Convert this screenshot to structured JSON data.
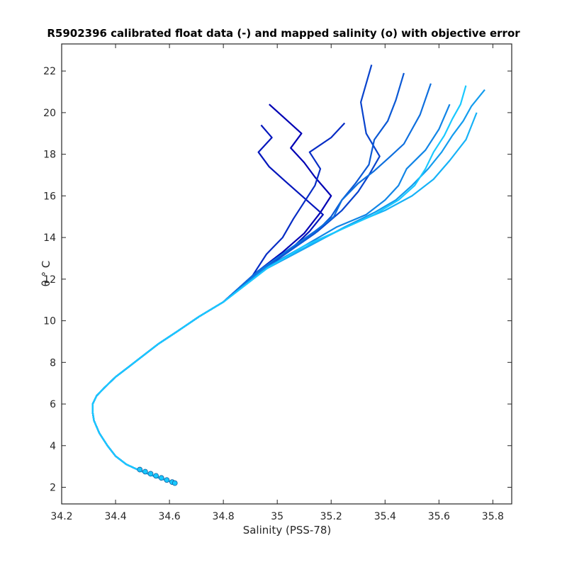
{
  "chart_data": {
    "type": "line",
    "title": "R5902396 calibrated float data (-) and mapped salinity (o) with objective error",
    "xlabel": "Salinity (PSS-78)",
    "ylabel": "θ ° C",
    "xlim": [
      34.2,
      35.87
    ],
    "ylim": [
      1.2,
      23.3
    ],
    "xticks": [
      34.2,
      34.4,
      34.6,
      34.8,
      35,
      35.2,
      35.4,
      35.6,
      35.8
    ],
    "xtick_labels": [
      "34.2",
      "34.4",
      "34.6",
      "34.8",
      "35",
      "35.2",
      "35.4",
      "35.6",
      "35.8"
    ],
    "yticks": [
      2,
      4,
      6,
      8,
      10,
      12,
      14,
      16,
      18,
      20,
      22
    ],
    "ytick_labels": [
      "2",
      "4",
      "6",
      "8",
      "10",
      "12",
      "14",
      "16",
      "18",
      "20",
      "22"
    ],
    "grid": false,
    "legend": "none",
    "color_start": "#0000b4",
    "color_end": "#19c8ff",
    "common_profile": {
      "x": [
        34.62,
        34.55,
        34.49,
        34.44,
        34.4,
        34.37,
        34.34,
        34.32,
        34.315,
        34.315,
        34.33,
        34.36,
        34.4,
        34.45,
        34.5,
        34.56,
        34.63,
        34.71,
        34.8
      ],
      "y": [
        2.2,
        2.5,
        2.8,
        3.1,
        3.5,
        4.0,
        4.6,
        5.2,
        5.6,
        6.0,
        6.4,
        6.8,
        7.3,
        7.8,
        8.3,
        8.9,
        9.5,
        10.2,
        10.9
      ]
    },
    "profiles": [
      {
        "x": [
          34.8,
          34.92,
          35.02,
          35.1,
          35.16,
          35.2,
          35.14,
          35.1,
          35.05,
          35.09,
          35.03,
          34.97
        ],
        "y": [
          10.9,
          12.3,
          13.3,
          14.2,
          15.2,
          16.0,
          16.9,
          17.6,
          18.3,
          19.0,
          19.7,
          20.4
        ]
      },
      {
        "x": [
          34.8,
          34.94,
          35.04,
          35.12,
          35.17,
          35.1,
          35.03,
          34.97,
          34.93,
          34.98,
          34.94
        ],
        "y": [
          10.9,
          12.4,
          13.3,
          14.3,
          15.1,
          15.9,
          16.7,
          17.4,
          18.1,
          18.8,
          19.4
        ]
      },
      {
        "x": [
          34.8,
          34.9,
          34.96,
          35.02,
          35.06,
          35.1,
          35.14,
          35.16,
          35.12,
          35.2,
          35.25
        ],
        "y": [
          10.9,
          12.0,
          13.2,
          14.0,
          14.9,
          15.7,
          16.5,
          17.3,
          18.1,
          18.8,
          19.5
        ]
      },
      {
        "x": [
          34.8,
          34.93,
          35.05,
          35.15,
          35.24,
          35.3,
          35.34,
          35.38,
          35.33,
          35.31,
          35.35
        ],
        "y": [
          10.9,
          12.4,
          13.4,
          14.3,
          15.3,
          16.2,
          17.0,
          17.9,
          19.0,
          20.5,
          22.3
        ]
      },
      {
        "x": [
          34.8,
          34.92,
          35.04,
          35.14,
          35.2,
          35.24,
          35.29,
          35.34,
          35.36,
          35.41,
          35.44,
          35.47
        ],
        "y": [
          10.9,
          12.3,
          13.3,
          14.2,
          15.0,
          15.8,
          16.6,
          17.5,
          18.7,
          19.6,
          20.6,
          21.9
        ]
      },
      {
        "x": [
          34.8,
          34.93,
          35.04,
          35.14,
          35.21,
          35.24,
          35.3,
          35.36,
          35.42,
          35.47,
          35.5,
          35.53,
          35.57
        ],
        "y": [
          10.9,
          12.4,
          13.4,
          14.3,
          15.0,
          15.8,
          16.6,
          17.2,
          17.9,
          18.5,
          19.2,
          19.9,
          21.4
        ]
      },
      {
        "x": [
          34.8,
          34.95,
          35.1,
          35.22,
          35.33,
          35.4,
          35.45,
          35.48,
          35.55,
          35.6,
          35.64
        ],
        "y": [
          10.9,
          12.5,
          13.6,
          14.5,
          15.1,
          15.8,
          16.5,
          17.3,
          18.2,
          19.2,
          20.4
        ]
      },
      {
        "x": [
          34.8,
          34.96,
          35.12,
          35.25,
          35.36,
          35.44,
          35.5,
          35.56,
          35.61,
          35.65,
          35.69,
          35.72,
          35.77
        ],
        "y": [
          10.9,
          12.5,
          13.6,
          14.5,
          15.2,
          15.8,
          16.5,
          17.3,
          18.1,
          18.9,
          19.6,
          20.3,
          21.1
        ]
      },
      {
        "x": [
          34.8,
          34.97,
          35.13,
          35.27,
          35.4,
          35.5,
          35.58,
          35.64,
          35.7,
          35.74
        ],
        "y": [
          10.9,
          12.6,
          13.7,
          14.6,
          15.3,
          16.0,
          16.8,
          17.7,
          18.7,
          20.0
        ]
      },
      {
        "x": [
          34.8,
          34.96,
          35.1,
          35.24,
          35.36,
          35.45,
          35.51,
          35.55,
          35.58,
          35.62,
          35.65,
          35.68,
          35.7
        ],
        "y": [
          10.9,
          12.5,
          13.6,
          14.4,
          15.1,
          15.8,
          16.5,
          17.3,
          18.1,
          18.9,
          19.7,
          20.4,
          21.3
        ]
      }
    ],
    "mapped_salinity": {
      "x": [
        34.49,
        34.51,
        34.53,
        34.55,
        34.57,
        34.59,
        34.61,
        34.62
      ],
      "y": [
        2.85,
        2.75,
        2.65,
        2.55,
        2.45,
        2.35,
        2.25,
        2.2
      ]
    }
  }
}
